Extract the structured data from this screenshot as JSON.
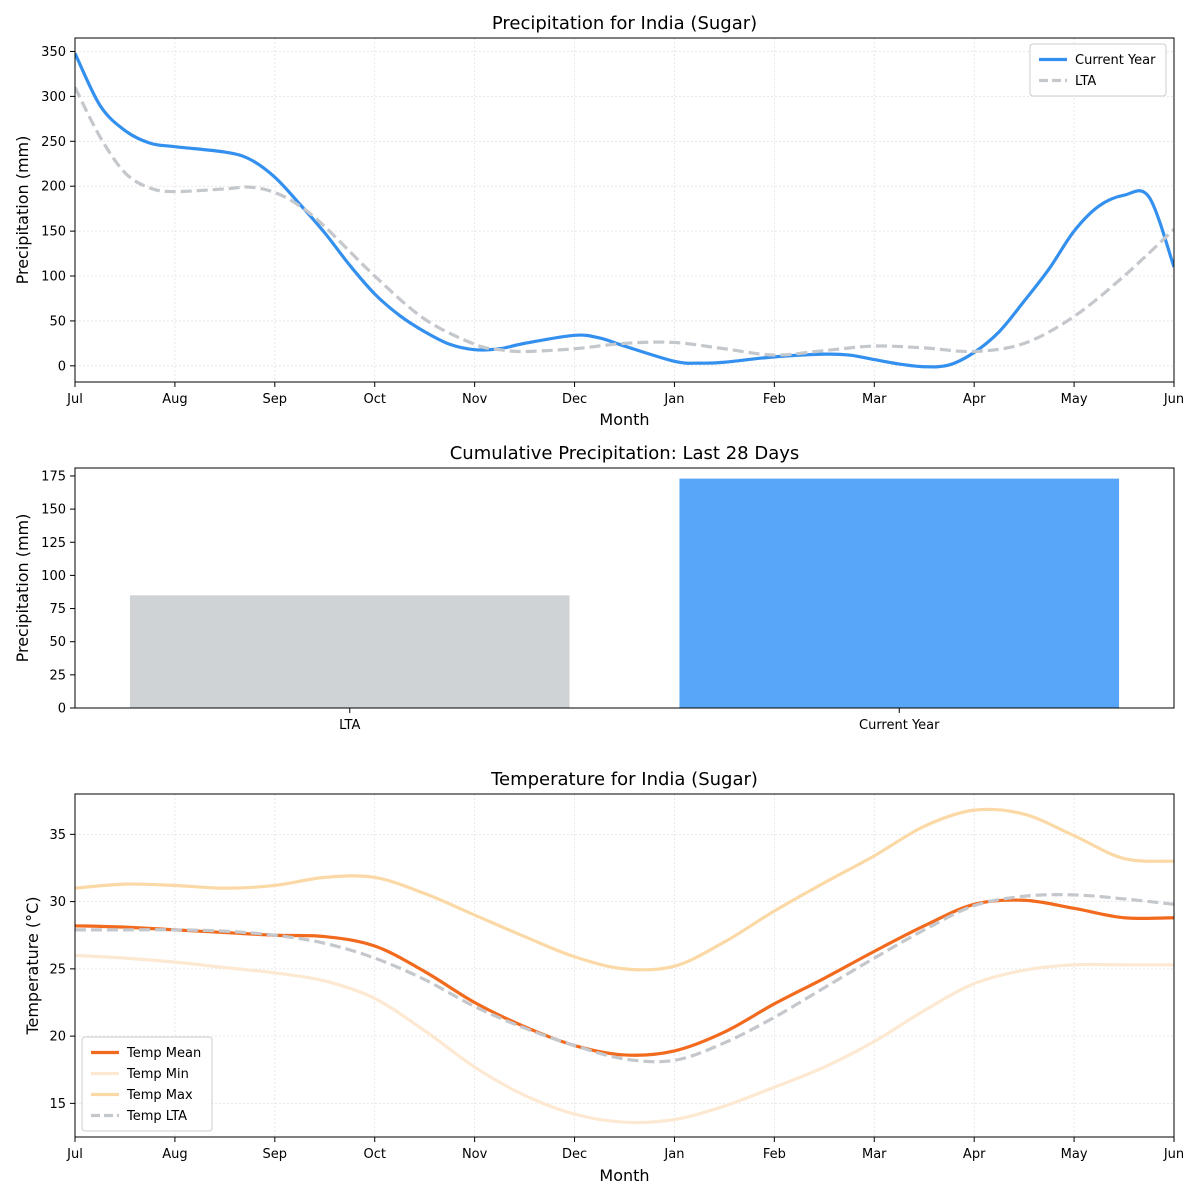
{
  "chart_data": [
    {
      "type": "line",
      "title": "Precipitation for India (Sugar)",
      "xlabel": "Month",
      "ylabel": "Precipitation (mm)",
      "categories": [
        "Jul",
        "Aug",
        "Sep",
        "Oct",
        "Nov",
        "Dec",
        "Jan",
        "Feb",
        "Mar",
        "Apr",
        "May",
        "Jun"
      ],
      "ylim": [
        -18,
        365
      ],
      "yticks": [
        0,
        50,
        100,
        150,
        200,
        250,
        300,
        350
      ],
      "grid": true,
      "legend": "top-right",
      "series": [
        {
          "name": "Current Year",
          "color": "#3390ee",
          "style": "solid",
          "points": [
            [
              0,
              348
            ],
            [
              0.25,
              290
            ],
            [
              0.5,
              262
            ],
            [
              0.75,
              248
            ],
            [
              1,
              244
            ],
            [
              1.5,
              238
            ],
            [
              1.75,
              230
            ],
            [
              2,
              210
            ],
            [
              2.25,
              180
            ],
            [
              2.5,
              148
            ],
            [
              2.75,
              112
            ],
            [
              3,
              80
            ],
            [
              3.25,
              56
            ],
            [
              3.5,
              38
            ],
            [
              3.75,
              24
            ],
            [
              4,
              18
            ],
            [
              4.25,
              19
            ],
            [
              4.5,
              25
            ],
            [
              5,
              34
            ],
            [
              5.25,
              31
            ],
            [
              5.5,
              22
            ],
            [
              6,
              5
            ],
            [
              6.25,
              3
            ],
            [
              6.5,
              4
            ],
            [
              7,
              10
            ],
            [
              7.5,
              13
            ],
            [
              7.75,
              12
            ],
            [
              8,
              7
            ],
            [
              8.25,
              2
            ],
            [
              8.5,
              -1
            ],
            [
              8.75,
              1
            ],
            [
              9,
              15
            ],
            [
              9.25,
              38
            ],
            [
              9.5,
              72
            ],
            [
              9.75,
              108
            ],
            [
              10,
              150
            ],
            [
              10.25,
              178
            ],
            [
              10.5,
              190
            ],
            [
              10.75,
              188
            ],
            [
              11,
              110
            ]
          ]
        },
        {
          "name": "LTA",
          "color": "#c4c7cc",
          "style": "dashed",
          "points": [
            [
              0,
              310
            ],
            [
              0.25,
              255
            ],
            [
              0.5,
              215
            ],
            [
              0.75,
              198
            ],
            [
              1,
              194
            ],
            [
              1.5,
              197
            ],
            [
              1.75,
              199
            ],
            [
              2,
              193
            ],
            [
              2.25,
              178
            ],
            [
              2.5,
              155
            ],
            [
              3,
              100
            ],
            [
              3.5,
              52
            ],
            [
              4,
              24
            ],
            [
              4.25,
              18
            ],
            [
              4.5,
              16
            ],
            [
              5,
              19
            ],
            [
              5.5,
              25
            ],
            [
              6,
              26
            ],
            [
              6.5,
              19
            ],
            [
              7,
              12
            ],
            [
              7.5,
              17
            ],
            [
              8,
              22
            ],
            [
              8.5,
              20
            ],
            [
              9,
              16
            ],
            [
              9.5,
              25
            ],
            [
              10,
              55
            ],
            [
              10.5,
              100
            ],
            [
              11,
              152
            ]
          ]
        }
      ]
    },
    {
      "type": "bar",
      "title": "Cumulative Precipitation: Last 28 Days",
      "xlabel": "",
      "ylabel": "Precipitation (mm)",
      "categories": [
        "LTA",
        "Current Year"
      ],
      "values": [
        85,
        173
      ],
      "colors": [
        "#d0d3d6",
        "#58a6f9"
      ],
      "ylim": [
        0,
        181
      ],
      "yticks": [
        0,
        25,
        50,
        75,
        100,
        125,
        150,
        175
      ],
      "grid": false
    },
    {
      "type": "line",
      "title": "Temperature for India (Sugar)",
      "xlabel": "Month",
      "ylabel": "Temperature (°C)",
      "categories": [
        "Jul",
        "Aug",
        "Sep",
        "Oct",
        "Nov",
        "Dec",
        "Jan",
        "Feb",
        "Mar",
        "Apr",
        "May",
        "Jun"
      ],
      "ylim": [
        12.5,
        38
      ],
      "yticks": [
        15,
        20,
        25,
        30,
        35
      ],
      "grid": true,
      "legend": "bottom-left",
      "series": [
        {
          "name": "Temp Mean",
          "color": "#f26a1e",
          "style": "solid",
          "points": [
            [
              0,
              28.2
            ],
            [
              0.5,
              28.1
            ],
            [
              1,
              27.9
            ],
            [
              1.5,
              27.7
            ],
            [
              2,
              27.5
            ],
            [
              2.5,
              27.4
            ],
            [
              3,
              26.7
            ],
            [
              3.5,
              24.8
            ],
            [
              4,
              22.5
            ],
            [
              4.5,
              20.7
            ],
            [
              5,
              19.3
            ],
            [
              5.5,
              18.6
            ],
            [
              6,
              18.9
            ],
            [
              6.5,
              20.3
            ],
            [
              7,
              22.4
            ],
            [
              7.5,
              24.3
            ],
            [
              8,
              26.3
            ],
            [
              8.5,
              28.2
            ],
            [
              9,
              29.8
            ],
            [
              9.5,
              30.1
            ],
            [
              10,
              29.5
            ],
            [
              10.5,
              28.8
            ],
            [
              11,
              28.8
            ]
          ]
        },
        {
          "name": "Temp Min",
          "color": "#fde8d1",
          "style": "solid",
          "points": [
            [
              0,
              26.0
            ],
            [
              0.5,
              25.8
            ],
            [
              1,
              25.5
            ],
            [
              1.5,
              25.1
            ],
            [
              2,
              24.7
            ],
            [
              2.5,
              24.1
            ],
            [
              3,
              22.8
            ],
            [
              3.5,
              20.4
            ],
            [
              4,
              17.7
            ],
            [
              4.5,
              15.6
            ],
            [
              5,
              14.2
            ],
            [
              5.5,
              13.6
            ],
            [
              6,
              13.8
            ],
            [
              6.5,
              14.8
            ],
            [
              7,
              16.2
            ],
            [
              7.5,
              17.7
            ],
            [
              8,
              19.6
            ],
            [
              8.5,
              21.9
            ],
            [
              9,
              23.9
            ],
            [
              9.5,
              24.9
            ],
            [
              10,
              25.3
            ],
            [
              10.5,
              25.3
            ],
            [
              11,
              25.3
            ]
          ]
        },
        {
          "name": "Temp Max",
          "color": "#fbd9a6",
          "style": "solid",
          "points": [
            [
              0,
              31.0
            ],
            [
              0.5,
              31.3
            ],
            [
              1,
              31.2
            ],
            [
              1.5,
              31.0
            ],
            [
              2,
              31.2
            ],
            [
              2.5,
              31.8
            ],
            [
              3,
              31.8
            ],
            [
              3.5,
              30.6
            ],
            [
              4,
              29.0
            ],
            [
              4.5,
              27.4
            ],
            [
              5,
              25.9
            ],
            [
              5.5,
              25.0
            ],
            [
              6,
              25.2
            ],
            [
              6.5,
              27.0
            ],
            [
              7,
              29.3
            ],
            [
              7.5,
              31.4
            ],
            [
              8,
              33.4
            ],
            [
              8.5,
              35.6
            ],
            [
              9,
              36.8
            ],
            [
              9.5,
              36.5
            ],
            [
              10,
              34.9
            ],
            [
              10.5,
              33.2
            ],
            [
              11,
              33.0
            ]
          ]
        },
        {
          "name": "Temp LTA",
          "color": "#c4c7cc",
          "style": "dashed",
          "points": [
            [
              0,
              27.9
            ],
            [
              0.5,
              27.9
            ],
            [
              1,
              27.9
            ],
            [
              1.5,
              27.8
            ],
            [
              2,
              27.5
            ],
            [
              2.5,
              26.9
            ],
            [
              3,
              25.8
            ],
            [
              3.5,
              24.2
            ],
            [
              4,
              22.2
            ],
            [
              4.5,
              20.6
            ],
            [
              5,
              19.3
            ],
            [
              5.5,
              18.3
            ],
            [
              6,
              18.2
            ],
            [
              6.5,
              19.5
            ],
            [
              7,
              21.4
            ],
            [
              7.5,
              23.6
            ],
            [
              8,
              25.8
            ],
            [
              8.5,
              27.9
            ],
            [
              9,
              29.7
            ],
            [
              9.5,
              30.4
            ],
            [
              10,
              30.5
            ],
            [
              10.5,
              30.2
            ],
            [
              11,
              29.8
            ]
          ]
        }
      ]
    }
  ]
}
